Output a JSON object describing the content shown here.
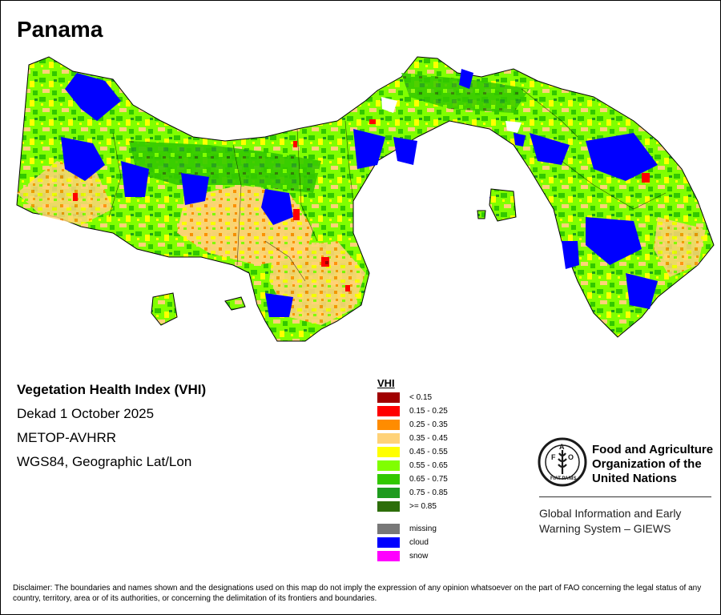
{
  "map": {
    "title": "Panama",
    "metadata": {
      "index_name": "Vegetation Health Index (VHI)",
      "period": "Dekad 1 October 2025",
      "sensor": "METOP-AVHRR",
      "projection": "WGS84, Geographic Lat/Lon"
    }
  },
  "legend": {
    "heading": "VHI",
    "items": [
      {
        "label": "< 0.15",
        "color": "#a00000"
      },
      {
        "label": "0.15 - 0.25",
        "color": "#ff0000"
      },
      {
        "label": "0.25 - 0.35",
        "color": "#ff8c00"
      },
      {
        "label": "0.35 - 0.45",
        "color": "#ffd278"
      },
      {
        "label": "0.45 - 0.55",
        "color": "#ffff00"
      },
      {
        "label": "0.55 - 0.65",
        "color": "#80ff00"
      },
      {
        "label": "0.65 - 0.75",
        "color": "#32c800"
      },
      {
        "label": "0.75 - 0.85",
        "color": "#1e9b1e"
      },
      {
        "label": ">= 0.85",
        "color": "#2d6e0a"
      }
    ],
    "extra": [
      {
        "label": "missing",
        "color": "#787878"
      },
      {
        "label": "cloud",
        "color": "#0000ff"
      },
      {
        "label": "snow",
        "color": "#ff00ff"
      }
    ]
  },
  "organization": {
    "name_line1": "Food and Agriculture",
    "name_line2": "Organization of the",
    "name_line3": "United Nations",
    "logo_text": "FAO",
    "logo_motto": "FIAT PANIS",
    "system_line1": "Global Information and Early",
    "system_line2": "Warning System – GIEWS"
  },
  "disclaimer": "Disclaimer: The boundaries and names shown and the designations used on this map do not imply the expression of any opinion whatsoever on the part of FAO concerning the legal status of any country, territory, area or of its authorities, or concerning the delimitation of its frontiers and boundaries."
}
